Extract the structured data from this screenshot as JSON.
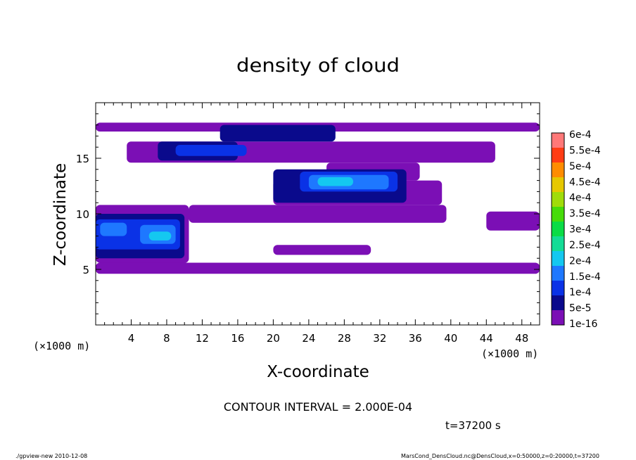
{
  "chart_data": {
    "type": "heatmap",
    "title": "density of cloud",
    "xlabel": "X-coordinate",
    "ylabel": "Z-coordinate",
    "x_unit_left": "(×1000 m)",
    "x_unit_right": "(×1000 m)",
    "xlim": [
      0,
      50
    ],
    "ylim": [
      0,
      20
    ],
    "x_ticks": [
      "4",
      "8",
      "12",
      "16",
      "20",
      "24",
      "28",
      "32",
      "36",
      "40",
      "44",
      "48"
    ],
    "y_ticks": [
      "5",
      "10",
      "15"
    ],
    "x_tick_values": [
      4,
      8,
      12,
      16,
      20,
      24,
      28,
      32,
      36,
      40,
      44,
      48
    ],
    "y_tick_values": [
      5,
      10,
      15
    ],
    "contour_interval": "CONTOUR INTERVAL = 2.000E-04",
    "time_label": "t=37200 s",
    "colorbar": {
      "levels": [
        "1e-16",
        "5e-5",
        "1e-4",
        "1.5e-4",
        "2e-4",
        "2.5e-4",
        "3e-4",
        "3.5e-4",
        "4e-4",
        "4.5e-4",
        "5e-4",
        "5.5e-4",
        "6e-4"
      ],
      "colors": [
        "#7b0fb5",
        "#0a0a8c",
        "#0a32e6",
        "#1e78ff",
        "#14c8f0",
        "#14dc96",
        "#0adc46",
        "#46dc0a",
        "#a0dc0a",
        "#e6c800",
        "#ff8c00",
        "#ff3c14",
        "#ff7878"
      ]
    },
    "regions": [
      {
        "level": 0,
        "x_range": [
          0.0,
          50.0
        ],
        "z_range": [
          4.6,
          5.6
        ]
      },
      {
        "level": 0,
        "x_range": [
          0.0,
          10.5
        ],
        "z_range": [
          5.6,
          10.8
        ]
      },
      {
        "level": 0,
        "x_range": [
          10.5,
          39.5
        ],
        "z_range": [
          9.2,
          10.8
        ]
      },
      {
        "level": 0,
        "x_range": [
          20.0,
          39.0
        ],
        "z_range": [
          10.8,
          13.0
        ]
      },
      {
        "level": 0,
        "x_range": [
          26.0,
          36.5
        ],
        "z_range": [
          13.0,
          14.6
        ]
      },
      {
        "level": 0,
        "x_range": [
          3.5,
          45.0
        ],
        "z_range": [
          14.6,
          16.5
        ]
      },
      {
        "level": 0,
        "x_range": [
          0.0,
          50.0
        ],
        "z_range": [
          17.4,
          18.2
        ]
      },
      {
        "level": 0,
        "x_range": [
          44.0,
          50.0
        ],
        "z_range": [
          8.5,
          10.2
        ]
      },
      {
        "level": 0,
        "x_range": [
          20.0,
          31.0
        ],
        "z_range": [
          6.3,
          7.2
        ]
      },
      {
        "level": 1,
        "x_range": [
          0.0,
          10.0
        ],
        "z_range": [
          6.0,
          10.0
        ]
      },
      {
        "level": 1,
        "x_range": [
          7.0,
          16.0
        ],
        "z_range": [
          14.8,
          16.5
        ]
      },
      {
        "level": 1,
        "x_range": [
          14.0,
          27.0
        ],
        "z_range": [
          16.5,
          18.0
        ]
      },
      {
        "level": 1,
        "x_range": [
          20.0,
          35.0
        ],
        "z_range": [
          11.0,
          14.0
        ]
      },
      {
        "level": 2,
        "x_range": [
          0.0,
          9.5
        ],
        "z_range": [
          6.8,
          9.5
        ]
      },
      {
        "level": 2,
        "x_range": [
          9.0,
          17.0
        ],
        "z_range": [
          15.2,
          16.2
        ]
      },
      {
        "level": 2,
        "x_range": [
          23.0,
          34.0
        ],
        "z_range": [
          12.0,
          13.8
        ]
      },
      {
        "level": 3,
        "x_range": [
          0.5,
          3.5
        ],
        "z_range": [
          8.0,
          9.2
        ]
      },
      {
        "level": 3,
        "x_range": [
          5.0,
          9.0
        ],
        "z_range": [
          7.3,
          9.0
        ]
      },
      {
        "level": 3,
        "x_range": [
          24.0,
          33.0
        ],
        "z_range": [
          12.2,
          13.5
        ]
      },
      {
        "level": 4,
        "x_range": [
          6.0,
          8.5
        ],
        "z_range": [
          7.6,
          8.4
        ]
      },
      {
        "level": 4,
        "x_range": [
          25.0,
          29.0
        ],
        "z_range": [
          12.5,
          13.3
        ]
      }
    ]
  },
  "footer": {
    "left": "./gpview-new  2010-12-08",
    "right": "MarsCond_DensCloud.nc@DensCloud,x=0:50000,z=0:20000,t=37200"
  }
}
